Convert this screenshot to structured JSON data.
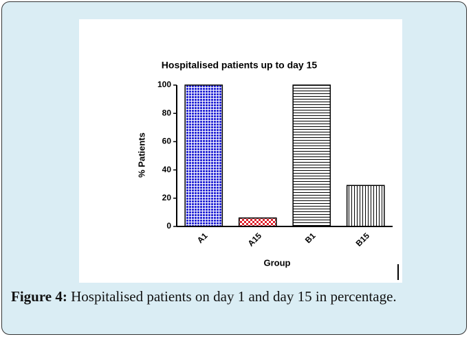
{
  "chart_data": {
    "type": "bar",
    "title": "Hospitalised patients up to day 15",
    "xlabel": "Group",
    "ylabel": "% Patients",
    "categories": [
      "A1",
      "A15",
      "B1",
      "B15"
    ],
    "values": [
      100,
      6,
      100,
      29
    ],
    "colors": [
      "#2b2bd6",
      "#e0202a",
      "#000000",
      "#000000"
    ],
    "patterns": [
      "dots",
      "checker",
      "hlines",
      "vlines"
    ],
    "ylim": [
      0,
      100
    ],
    "yticks": [
      0,
      20,
      40,
      60,
      80,
      100
    ]
  },
  "caption": {
    "label": "Figure 4:",
    "text": "Hospitalised patients on day 1 and day 15 in percentage."
  }
}
